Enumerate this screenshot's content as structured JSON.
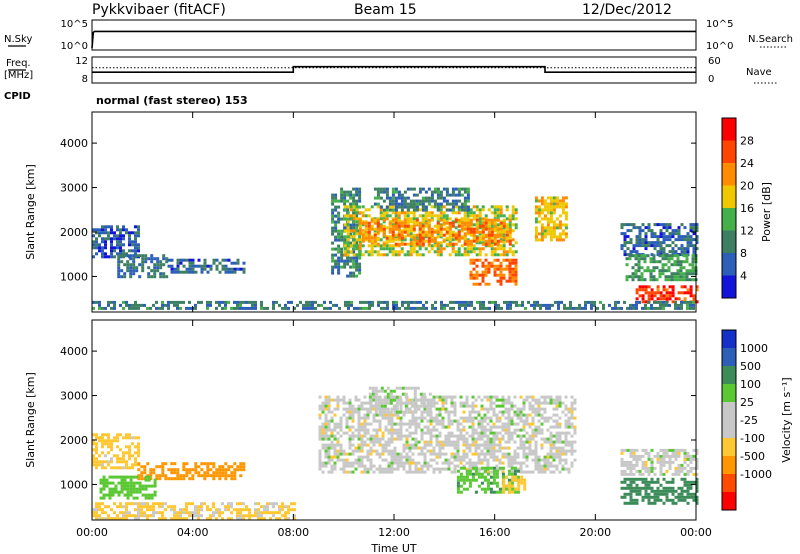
{
  "header": {
    "radar": "Pykkvibaer (fitACF)",
    "beam": "Beam 15",
    "date": "12/Dec/2012"
  },
  "strips": {
    "nsky_label": "N.Sky",
    "nsky_ticks": [
      "10^5",
      "10^0"
    ],
    "nsearch_label": "N.Search",
    "nsearch_ticks": [
      "10^5",
      "10^0"
    ],
    "freq_label_1": "Freq.",
    "freq_label_2": "[MHz]",
    "freq_ticks": [
      "12",
      "8"
    ],
    "nave_label": "Nave",
    "nave_ticks": [
      "60",
      "0"
    ],
    "cpid_label": "CPID",
    "cpid_value": "normal (fast stereo) 153"
  },
  "colors": {
    "power_scale": [
      "#1414d8",
      "#2d5fb8",
      "#3c7f62",
      "#45b049",
      "#f0c800",
      "#ff8c00",
      "#ff4500",
      "#ff0000"
    ],
    "velocity_scale": [
      "#ff0000",
      "#ff4b00",
      "#ff9600",
      "#ffc832",
      "#c8c8c8",
      "#c8c8c8",
      "#5ac832",
      "#3c8c5a",
      "#2d5fb8",
      "#1430c8"
    ]
  },
  "chart_data": [
    {
      "type": "heatmap",
      "panel": "power",
      "ylabel": "Slant Range [km]",
      "yticks": [
        "4000",
        "3000",
        "2000",
        "1000"
      ],
      "ylim": [
        200,
        4700
      ],
      "colorbar_label": "Power [dB]",
      "colorbar_ticks": [
        "28",
        "24",
        "20",
        "16",
        "12",
        "8",
        "4"
      ],
      "colorbar_range": [
        0,
        32
      ],
      "blobs": [
        {
          "t": [
            0.0,
            1.9
          ],
          "r": [
            1450,
            2150
          ],
          "v": 6
        },
        {
          "t": [
            1.0,
            3.0
          ],
          "r": [
            1000,
            1500
          ],
          "v": 8
        },
        {
          "t": [
            3.0,
            6.0
          ],
          "r": [
            1100,
            1400
          ],
          "v": 7
        },
        {
          "t": [
            9.5,
            10.6
          ],
          "r": [
            1000,
            3000
          ],
          "v": 10
        },
        {
          "t": [
            10.0,
            16.8
          ],
          "r": [
            1500,
            2600
          ],
          "v": 17
        },
        {
          "t": [
            10.6,
            16.6
          ],
          "r": [
            1700,
            2300
          ],
          "v": 22
        },
        {
          "t": [
            11.2,
            15.0
          ],
          "r": [
            2500,
            3000
          ],
          "v": 9
        },
        {
          "t": [
            15.0,
            16.9
          ],
          "r": [
            850,
            1400
          ],
          "v": 24
        },
        {
          "t": [
            17.6,
            18.9
          ],
          "r": [
            1800,
            2800
          ],
          "v": 19
        },
        {
          "t": [
            21.0,
            24.0
          ],
          "r": [
            1500,
            2200
          ],
          "v": 7
        },
        {
          "t": [
            21.2,
            24.0
          ],
          "r": [
            900,
            1500
          ],
          "v": 12
        },
        {
          "t": [
            21.6,
            24.0
          ],
          "r": [
            400,
            800
          ],
          "v": 27
        },
        {
          "t": [
            0.0,
            24.0
          ],
          "r": [
            250,
            450
          ],
          "v": 9
        }
      ]
    },
    {
      "type": "heatmap",
      "panel": "velocity",
      "ylabel": "Slant Range [km]",
      "yticks": [
        "4000",
        "3000",
        "2000",
        "1000"
      ],
      "ylim": [
        200,
        4700
      ],
      "colorbar_label": "Velocity [m s⁻¹]",
      "colorbar_ticks": [
        "1000",
        "500",
        "100",
        "25",
        "-25",
        "-100",
        "-500",
        "-1000"
      ],
      "colorbar_range": [
        -1250,
        1250
      ],
      "xlabel": "Time UT",
      "xticks": [
        "00:00",
        "04:00",
        "08:00",
        "12:00",
        "16:00",
        "20:00",
        "00:00"
      ],
      "xlim": [
        0,
        24
      ],
      "blobs": [
        {
          "t": [
            0.0,
            1.8
          ],
          "r": [
            1400,
            2150
          ],
          "v": -50
        },
        {
          "t": [
            1.8,
            6.0
          ],
          "r": [
            1100,
            1500
          ],
          "v": -250
        },
        {
          "t": [
            0.3,
            2.5
          ],
          "r": [
            700,
            1200
          ],
          "v": 60
        },
        {
          "t": [
            9.0,
            19.2
          ],
          "r": [
            1300,
            3000
          ],
          "v": 0
        },
        {
          "t": [
            11.0,
            13.5
          ],
          "r": [
            2600,
            3200
          ],
          "v": 10
        },
        {
          "t": [
            14.5,
            17.0
          ],
          "r": [
            800,
            1400
          ],
          "v": 80
        },
        {
          "t": [
            16.3,
            17.2
          ],
          "r": [
            800,
            1200
          ],
          "v": -60
        },
        {
          "t": [
            21.0,
            24.0
          ],
          "r": [
            1200,
            1800
          ],
          "v": 0
        },
        {
          "t": [
            21.0,
            24.0
          ],
          "r": [
            600,
            1150
          ],
          "v": 200
        },
        {
          "t": [
            0.0,
            8.0
          ],
          "r": [
            250,
            600
          ],
          "v": -40
        }
      ]
    },
    {
      "type": "line",
      "panel": "nsky_nsearch",
      "x": [
        0.0,
        0.05,
        0.1,
        24.0
      ],
      "values": [
        0,
        3,
        3.2,
        3.2
      ]
    },
    {
      "type": "line",
      "panel": "freq",
      "x": [
        0.0,
        8.0,
        8.0,
        18.0,
        18.0,
        24.0
      ],
      "values": [
        9.6,
        9.6,
        10.6,
        10.6,
        9.6,
        9.6
      ],
      "nave_level": 36
    }
  ]
}
